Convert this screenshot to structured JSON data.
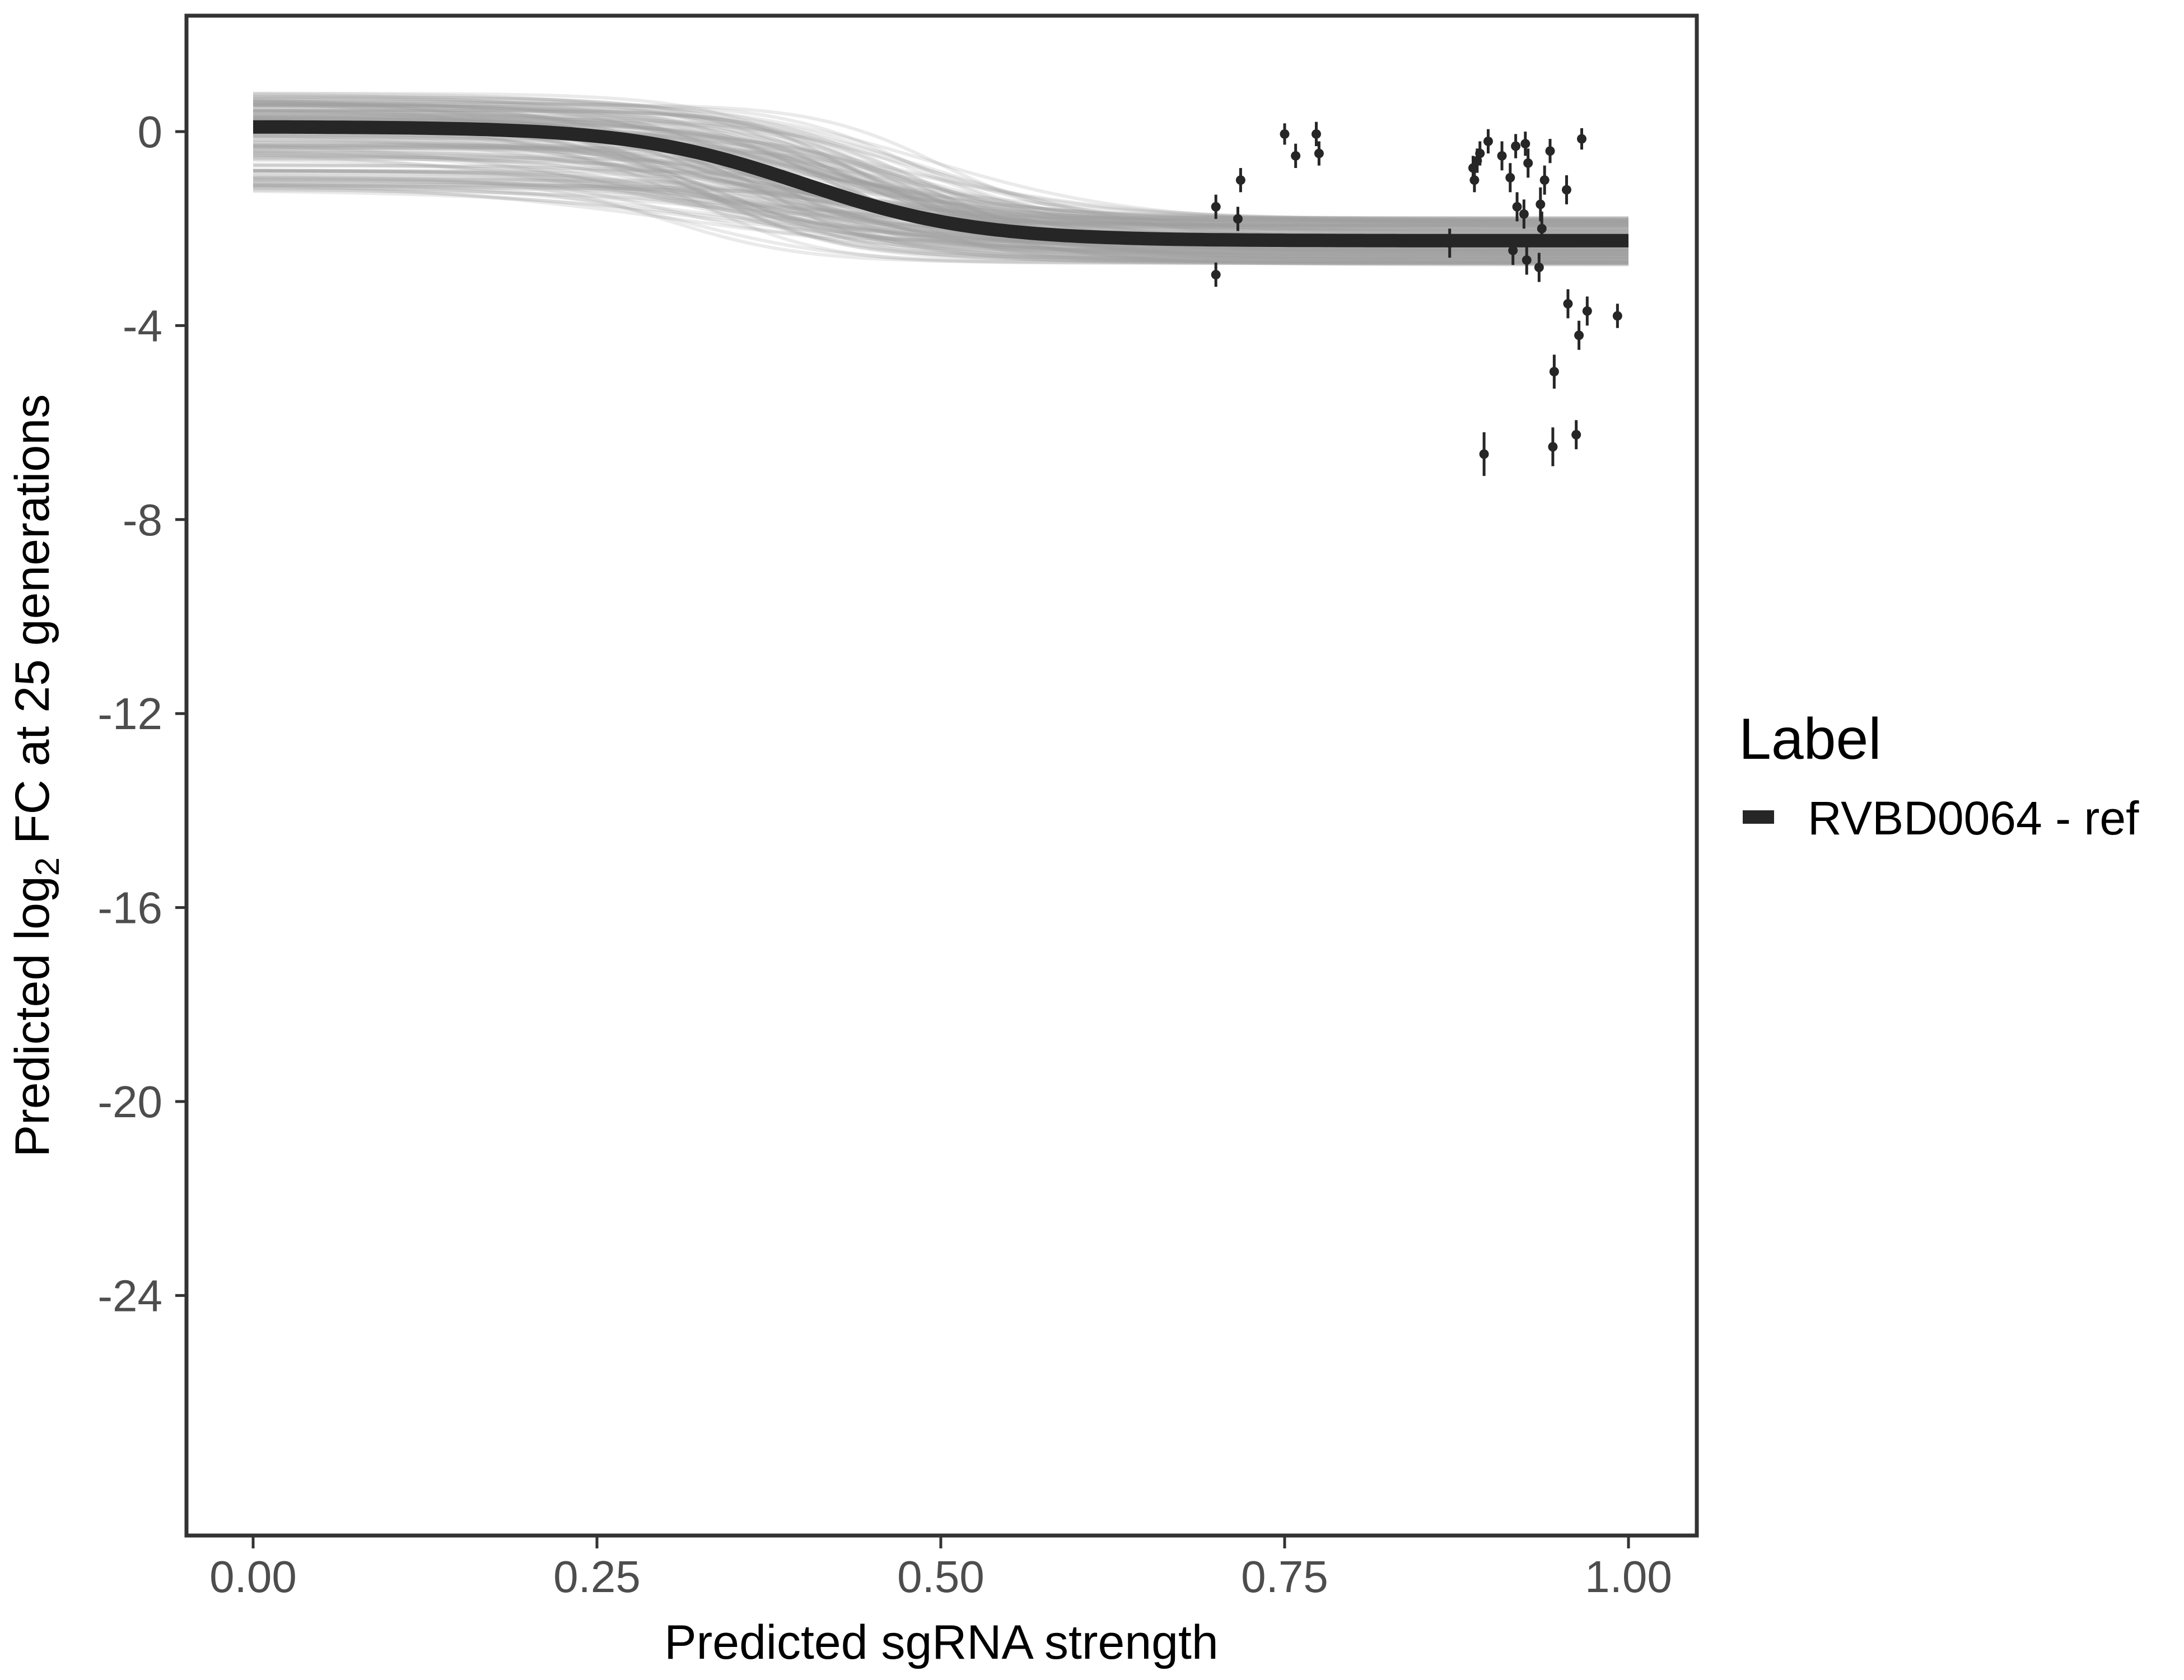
{
  "chart_data": {
    "type": "line",
    "xlabel": "Predicted sgRNA strength",
    "ylabel_parts": [
      "Predicted  log",
      "2",
      " FC at 25 generations"
    ],
    "xlim": [
      -0.05,
      1.05
    ],
    "ylim": [
      -29.5,
      2.5
    ],
    "x_ticks": [
      0,
      0.25,
      0.5,
      0.75,
      1
    ],
    "x_tick_labels": [
      "0.00",
      "0.25",
      "0.50",
      "0.75",
      "1.00"
    ],
    "y_ticks": [
      0,
      -4,
      -8,
      -12,
      -16,
      -20,
      -24
    ],
    "y_tick_labels": [
      "0",
      "-4",
      "-8",
      "-12",
      "-16",
      "-20",
      "-24"
    ],
    "grid": false,
    "legend": {
      "title": "Label",
      "position": "right",
      "entries": [
        "RVBD0064 - ref"
      ]
    },
    "colors": {
      "fit_line": "#262626",
      "posterior_draws": "#9e9e9e",
      "points": "#262626",
      "axis": "#333333"
    },
    "fit_curve": {
      "model": "sigmoid",
      "upper": 0.1,
      "lower": -2.25,
      "midpoint": 0.4,
      "slope": 16
    },
    "series": [
      {
        "name": "RVBD0064 - ref",
        "points": [
          {
            "x": 0.7,
            "y": -1.55,
            "err": 0.25
          },
          {
            "x": 0.7,
            "y": -2.95,
            "err": 0.25
          },
          {
            "x": 0.716,
            "y": -1.8,
            "err": 0.25
          },
          {
            "x": 0.718,
            "y": -1.0,
            "err": 0.25
          },
          {
            "x": 0.75,
            "y": -0.05,
            "err": 0.22
          },
          {
            "x": 0.758,
            "y": -0.5,
            "err": 0.25
          },
          {
            "x": 0.773,
            "y": -0.05,
            "err": 0.25
          },
          {
            "x": 0.775,
            "y": -0.45,
            "err": 0.25
          },
          {
            "x": 0.87,
            "y": -2.3,
            "err": 0.3
          },
          {
            "x": 0.887,
            "y": -0.75,
            "err": 0.25
          },
          {
            "x": 0.888,
            "y": -1.0,
            "err": 0.25
          },
          {
            "x": 0.89,
            "y": -0.6,
            "err": 0.25
          },
          {
            "x": 0.892,
            "y": -0.45,
            "err": 0.25
          },
          {
            "x": 0.895,
            "y": -6.65,
            "err": 0.45
          },
          {
            "x": 0.898,
            "y": -0.2,
            "err": 0.25
          },
          {
            "x": 0.908,
            "y": -0.5,
            "err": 0.3
          },
          {
            "x": 0.914,
            "y": -0.95,
            "err": 0.3
          },
          {
            "x": 0.916,
            "y": -2.45,
            "err": 0.3
          },
          {
            "x": 0.918,
            "y": -0.3,
            "err": 0.25
          },
          {
            "x": 0.919,
            "y": -1.55,
            "err": 0.3
          },
          {
            "x": 0.924,
            "y": -1.7,
            "err": 0.3
          },
          {
            "x": 0.925,
            "y": -0.25,
            "err": 0.25
          },
          {
            "x": 0.926,
            "y": -2.65,
            "err": 0.3
          },
          {
            "x": 0.927,
            "y": -0.65,
            "err": 0.3
          },
          {
            "x": 0.935,
            "y": -2.8,
            "err": 0.3
          },
          {
            "x": 0.936,
            "y": -1.5,
            "err": 0.35
          },
          {
            "x": 0.937,
            "y": -2.0,
            "err": 0.35
          },
          {
            "x": 0.939,
            "y": -1.0,
            "err": 0.3
          },
          {
            "x": 0.943,
            "y": -0.4,
            "err": 0.25
          },
          {
            "x": 0.945,
            "y": -6.5,
            "err": 0.4
          },
          {
            "x": 0.946,
            "y": -4.95,
            "err": 0.35
          },
          {
            "x": 0.955,
            "y": -1.2,
            "err": 0.3
          },
          {
            "x": 0.956,
            "y": -3.55,
            "err": 0.3
          },
          {
            "x": 0.962,
            "y": -6.25,
            "err": 0.3
          },
          {
            "x": 0.964,
            "y": -4.2,
            "err": 0.3
          },
          {
            "x": 0.966,
            "y": -0.15,
            "err": 0.22
          },
          {
            "x": 0.97,
            "y": -3.7,
            "err": 0.3
          },
          {
            "x": 0.992,
            "y": -3.8,
            "err": 0.25
          }
        ]
      }
    ]
  }
}
